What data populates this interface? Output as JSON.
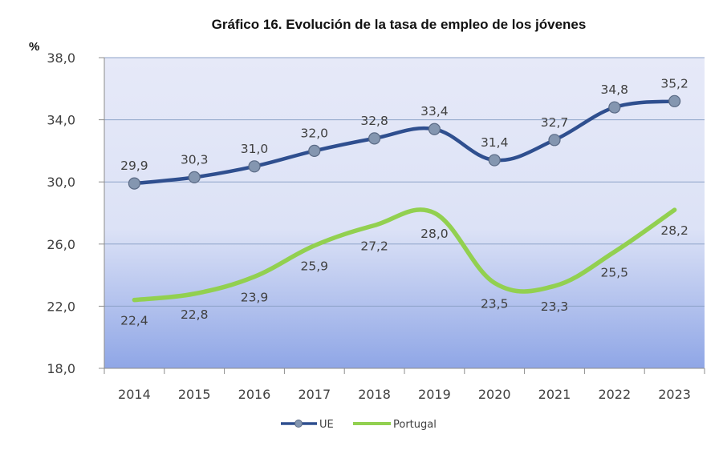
{
  "chart_data": {
    "type": "line",
    "title": "Gráfico 16. Evolución de la tasa de empleo de los jóvenes",
    "ylabel": "%",
    "xlabel": "",
    "categories": [
      "2014",
      "2015",
      "2016",
      "2017",
      "2018",
      "2019",
      "2020",
      "2021",
      "2022",
      "2023"
    ],
    "ylim": [
      18,
      38
    ],
    "yticks": [
      18,
      22,
      26,
      30,
      34,
      38
    ],
    "ytick_labels": [
      "18,0",
      "22,0",
      "26,0",
      "30,0",
      "34,0",
      "38,0"
    ],
    "grid": "horizontal",
    "smoothed": true,
    "legend_position": "bottom",
    "series": [
      {
        "name": "UE",
        "color": "#2F4F8F",
        "marker": "circle",
        "marker_color": "#8496B0",
        "values": [
          29.9,
          30.3,
          31.0,
          32.0,
          32.8,
          33.4,
          31.4,
          32.7,
          34.8,
          35.2
        ],
        "labels": [
          "29,9",
          "30,3",
          "31,0",
          "32,0",
          "32,8",
          "33,4",
          "31,4",
          "32,7",
          "34,8",
          "35,2"
        ],
        "label_position": "above"
      },
      {
        "name": "Portugal",
        "color": "#92D050",
        "marker": "none",
        "values": [
          22.4,
          22.8,
          23.9,
          25.9,
          27.2,
          28.0,
          23.5,
          23.3,
          25.5,
          28.2
        ],
        "labels": [
          "22,4",
          "22,8",
          "23,9",
          "25,9",
          "27,2",
          "28,0",
          "23,5",
          "23,3",
          "25,5",
          "28,2"
        ],
        "label_position": "below"
      }
    ],
    "background_gradient": [
      "#E6E9F7",
      "#8FA8E6"
    ],
    "gridline_color": "#8EA3C8"
  }
}
